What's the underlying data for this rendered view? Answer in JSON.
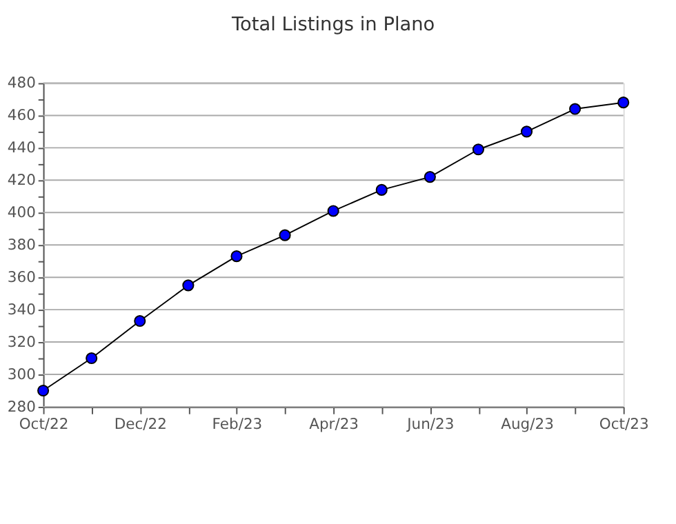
{
  "chart_data": {
    "type": "line",
    "title": "Total Listings in Plano",
    "categories": [
      "Oct/22",
      null,
      "Dec/22",
      null,
      "Feb/23",
      null,
      "Apr/23",
      null,
      "Jun/23",
      null,
      "Aug/23",
      null,
      "Oct/23"
    ],
    "series": [
      {
        "color": "#0000ff",
        "values": [
          290,
          310,
          333,
          355,
          373,
          386,
          401,
          414,
          422,
          439,
          450,
          464,
          468
        ]
      }
    ],
    "ylim": [
      280,
      480
    ],
    "yticks": [
      280,
      {
        "value": 290,
        "label": null
      },
      300,
      {
        "value": 310,
        "label": null
      },
      320,
      {
        "value": 330,
        "label": null
      },
      340,
      {
        "value": 350,
        "label": null
      },
      360,
      {
        "value": 370,
        "label": null
      },
      380,
      {
        "value": 390,
        "label": null
      },
      400,
      {
        "value": 410,
        "label": null
      },
      420,
      {
        "value": 430,
        "label": null
      },
      440,
      {
        "value": 450,
        "label": null
      },
      460,
      {
        "value": 470,
        "label": null
      },
      480
    ],
    "grid": "y",
    "marker": "circle",
    "line_style": "solid"
  }
}
